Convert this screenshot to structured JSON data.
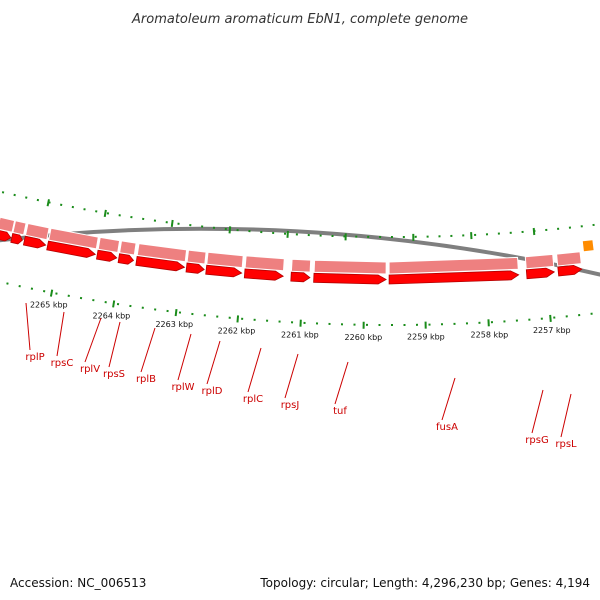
{
  "title": "Aromatoleum aromaticum EbN1, complete genome",
  "footer": {
    "accession": "Accession: NC_006513",
    "summary": "Topology: circular; Length: 4,296,230 bp; Genes: 4,194"
  },
  "kbp_labels": [
    "2265 kbp",
    "2264 kbp",
    "2263 kbp",
    "2262 kbp",
    "2261 kbp",
    "2260 kbp",
    "2259 kbp",
    "2258 kbp",
    "2257 kbp"
  ],
  "genes": [
    "rplP",
    "rpsC",
    "rplV",
    "rpsS",
    "rplB",
    "rplW",
    "rplD",
    "rplC",
    "rpsJ",
    "tuf",
    "fusA",
    "rpsG",
    "rpsL"
  ],
  "colors": {
    "gene_fill": "#ff0000",
    "gene_dark": "#b30000",
    "gene_light": "#ee8080",
    "backbone": "#7f7f7f",
    "tick": "#1a8c1a",
    "label": "#cc0000",
    "extra_gene": "#ff8c00"
  }
}
